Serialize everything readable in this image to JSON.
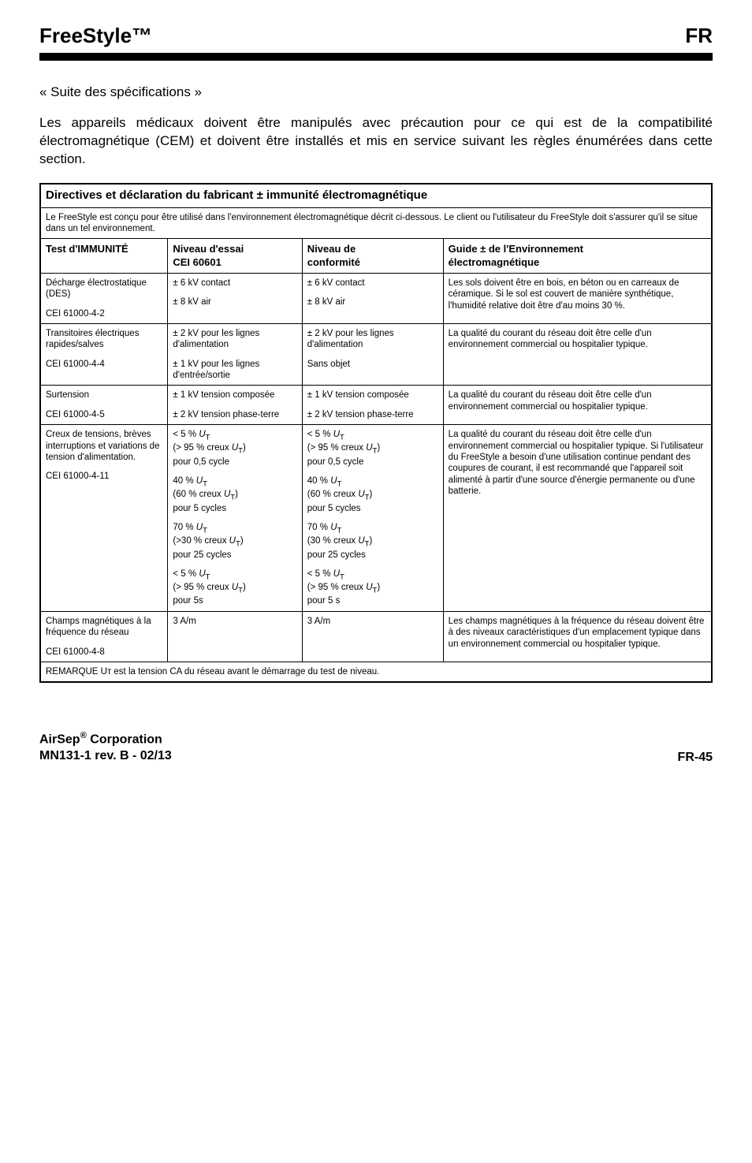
{
  "header": {
    "left": "FreeStyle™",
    "right": "FR"
  },
  "subtitle": "« Suite des spécifications »",
  "intro": "Les appareils médicaux doivent être manipulés avec précaution pour ce qui est de la compatibilité électromagnétique (CEM) et doivent être installés et mis en service suivant les règles énumérées dans cette section.",
  "table": {
    "title": "Directives et déclaration du fabricant ± immunité électromagnétique",
    "intro": "Le FreeStyle est conçu pour être utilisé dans l'environnement électromagnétique décrit ci-dessous. Le client ou l'utilisateur du FreeStyle doit s'assurer qu'il se situe dans un tel environnement.",
    "headers": {
      "c0": "Test d'IMMUNITÉ",
      "c1_l1": "Niveau d'essai",
      "c1_l2": "CEI 60601",
      "c2_l1": "Niveau de",
      "c2_l2": "conformité",
      "c3_l1": "Guide ± de l'Environnement",
      "c3_l2": "électromagnétique"
    },
    "rows": [
      {
        "c0": [
          "Décharge électrostatique (DES)",
          "",
          "CEI 61000-4-2"
        ],
        "c1": [
          "± 6 kV contact",
          "",
          "± 8 kV air"
        ],
        "c2": [
          "± 6 kV contact",
          "",
          "± 8 kV air"
        ],
        "c3": [
          "Les sols doivent être en bois, en béton ou en carreaux de céramique. Si le sol est couvert de manière synthétique, l'humidité relative doit être d'au moins 30 %."
        ]
      },
      {
        "c0": [
          "Transitoires électriques rapides/salves",
          "",
          "CEI 61000-4-4"
        ],
        "c1": [
          "± 2 kV pour les lignes d'alimentation",
          "",
          "± 1 kV pour les lignes d'entrée/sortie"
        ],
        "c2": [
          "± 2 kV pour les lignes d'alimentation",
          "",
          "Sans objet"
        ],
        "c3": [
          "La qualité du courant du réseau doit être celle d'un environnement commercial ou hospitalier typique."
        ]
      },
      {
        "c0": [
          "Surtension",
          "",
          "CEI 61000-4-5"
        ],
        "c1": [
          "± 1 kV tension composée",
          "",
          "± 2 kV tension phase-terre"
        ],
        "c2": [
          "± 1 kV tension composée",
          "",
          "± 2 kV tension phase-terre"
        ],
        "c3": [
          "La qualité du courant du réseau doit être celle d'un environnement commercial ou hospitalier typique."
        ]
      },
      {
        "c0": [
          "Creux de tensions, brèves interruptions et variations de tension d'alimentation.",
          "",
          "CEI 61000-4-11"
        ],
        "c1": [
          "< 5 % Uᴛ",
          "(> 95 % creux Uᴛ)",
          "pour 0,5 cycle",
          "",
          "40 % Uᴛ",
          "(60 % creux Uᴛ)",
          "pour 5 cycles",
          "",
          "70 % Uᴛ",
          "(>30 % creux Uᴛ)",
          "pour 25 cycles",
          "",
          "< 5 % Uᴛ",
          "(> 95 % creux Uᴛ)",
          "pour 5s"
        ],
        "c2": [
          "< 5 % Uᴛ",
          "(> 95 % creux Uᴛ)",
          "pour 0,5 cycle",
          "",
          "40 % Uᴛ",
          "(60 % creux Uᴛ)",
          "pour 5 cycles",
          "",
          "70 % Uᴛ",
          "(30 % creux Uᴛ)",
          "pour 25 cycles",
          "",
          "< 5 % Uᴛ",
          "(> 95 % creux Uᴛ)",
          "pour 5 s"
        ],
        "c3": [
          "La qualité du courant du réseau doit être celle d'un environnement commercial ou hospitalier typique. Si l'utilisateur du FreeStyle a besoin d'une utilisation continue pendant des coupures de courant, il est recommandé que l'appareil soit alimenté à partir d'une source d'énergie permanente ou d'une batterie."
        ]
      },
      {
        "c0": [
          "Champs magnétiques à la fréquence du réseau",
          "",
          "CEI 61000-4-8"
        ],
        "c1": [
          "3 A/m"
        ],
        "c2": [
          "3 A/m"
        ],
        "c3": [
          "Les champs magnétiques à la fréquence du réseau doivent être à des niveaux caractéristiques d'un emplacement typique dans un environnement commercial ou hospitalier typique."
        ]
      }
    ],
    "remark": "REMARQUE Uᴛ est la tension CA du réseau avant le démarrage du test de niveau."
  },
  "footer": {
    "left_l1": "AirSep® Corporation",
    "left_l2": "MN131-1 rev. B - 02/13",
    "right": "FR-45"
  }
}
